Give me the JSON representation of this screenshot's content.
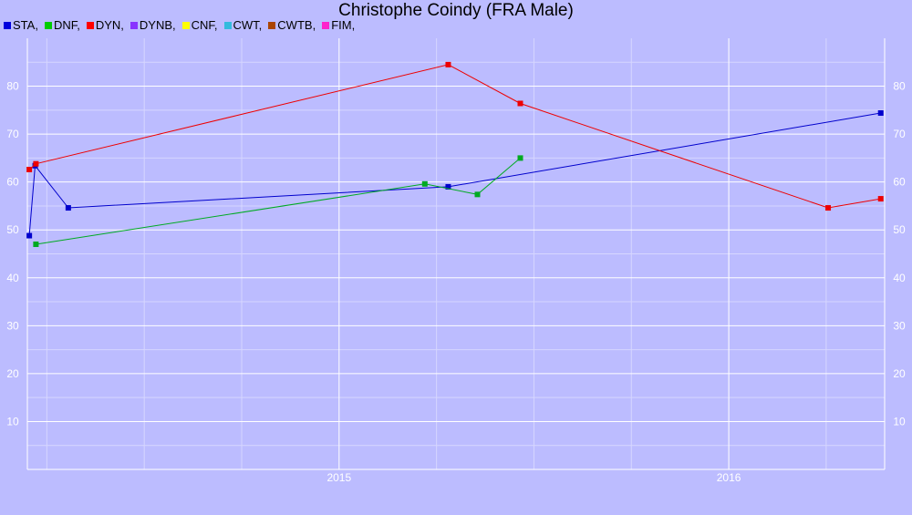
{
  "chart_data": {
    "type": "line",
    "title": "Christophe Coindy (FRA Male)",
    "xlabel": "",
    "ylabel": "",
    "x_ticks": [
      {
        "label": "2015",
        "value": 2015.0
      },
      {
        "label": "2016",
        "value": 2016.0
      }
    ],
    "xlim": [
      2014.2,
      2016.4
    ],
    "ylim": [
      0,
      90
    ],
    "y_ticks": [
      10,
      20,
      30,
      40,
      50,
      60,
      70,
      80
    ],
    "grid": true,
    "legend": "top-left",
    "legend_entries": [
      {
        "label": "STA,",
        "color": "#0000dd"
      },
      {
        "label": "DNF,",
        "color": "#00cc00"
      },
      {
        "label": "DYN,",
        "color": "#ff0000"
      },
      {
        "label": "DYNB,",
        "color": "#8833ff"
      },
      {
        "label": "CNF,",
        "color": "#ffff00"
      },
      {
        "label": "CWT,",
        "color": "#33bbdd"
      },
      {
        "label": "CWTB,",
        "color": "#aa4400"
      },
      {
        "label": "FIM,",
        "color": "#ff22cc"
      }
    ],
    "series": [
      {
        "name": "STA",
        "color": "#0000cc",
        "points": [
          [
            2014.205,
            48.8
          ],
          [
            2014.22,
            63.4
          ],
          [
            2014.305,
            54.6
          ],
          [
            2015.28,
            59.0
          ],
          [
            2016.39,
            74.4
          ]
        ]
      },
      {
        "name": "DNF",
        "color": "#00aa22",
        "points": [
          [
            2014.222,
            47.0
          ],
          [
            2015.22,
            59.6
          ],
          [
            2015.355,
            57.4
          ],
          [
            2015.465,
            65.0
          ]
        ]
      },
      {
        "name": "DYN",
        "color": "#ee0000",
        "points": [
          [
            2014.205,
            62.6
          ],
          [
            2014.222,
            63.8
          ],
          [
            2015.28,
            84.5
          ],
          [
            2015.465,
            76.4
          ],
          [
            2016.255,
            54.6
          ],
          [
            2016.39,
            56.5
          ]
        ]
      }
    ]
  }
}
